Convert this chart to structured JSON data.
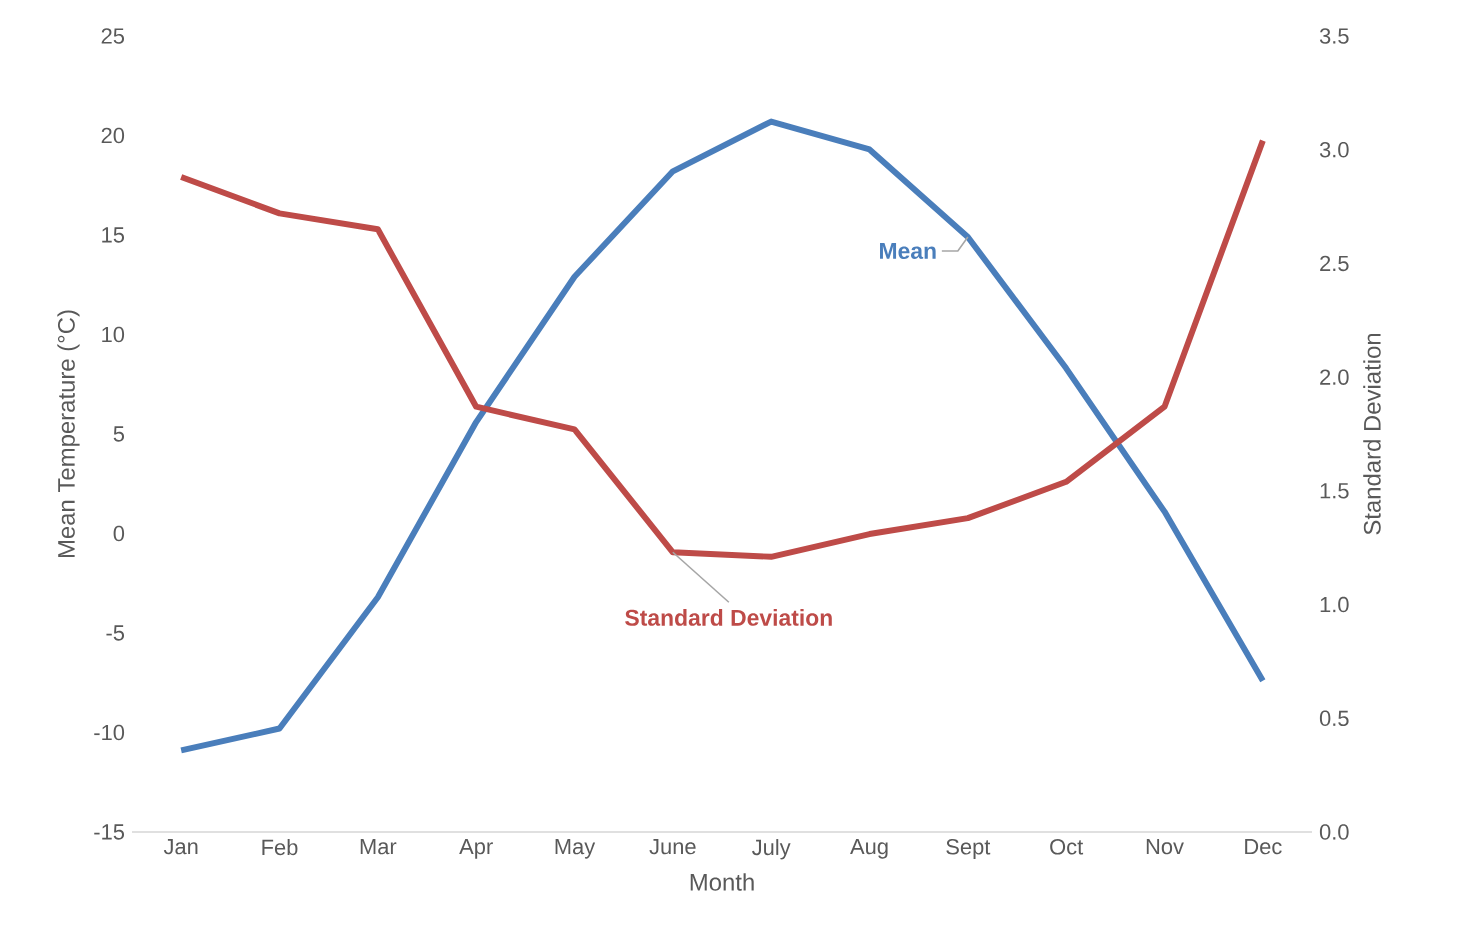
{
  "chart_data": {
    "type": "line",
    "xlabel": "Month",
    "ylabel": "Mean Temperature (°C)",
    "y2label": "Standard Deviation",
    "categories": [
      "Jan",
      "Feb",
      "Mar",
      "Apr",
      "May",
      "June",
      "July",
      "Aug",
      "Sept",
      "Oct",
      "Nov",
      "Dec"
    ],
    "series": [
      {
        "name": "Mean",
        "color": "#4a7ebb",
        "values": [
          -10.9,
          -9.8,
          -3.2,
          5.6,
          12.9,
          18.2,
          20.7,
          19.3,
          14.9,
          8.3,
          1.1,
          -7.4
        ]
      },
      {
        "name": "Standard Deviation",
        "color": "#be4b48",
        "axis": "y2",
        "values": [
          2.88,
          2.72,
          2.65,
          1.87,
          1.77,
          1.23,
          1.21,
          1.31,
          1.38,
          1.54,
          1.87,
          3.04
        ]
      }
    ],
    "ylim": [
      -15,
      25
    ],
    "yticks": [
      -15,
      -10,
      -5,
      0,
      5,
      10,
      15,
      20,
      25
    ],
    "y2lim": [
      0,
      3.5
    ],
    "y2ticks": [
      {
        "value": 0,
        "label": "0.0"
      },
      {
        "value": 0.5,
        "label": "0.5"
      },
      {
        "value": 1,
        "label": "1.0"
      },
      {
        "value": 1.5,
        "label": "1.5"
      },
      {
        "value": 2,
        "label": "2.0"
      },
      {
        "value": 2.5,
        "label": "2.5"
      },
      {
        "value": 3,
        "label": "3.0"
      },
      {
        "value": 3.5,
        "label": "3.5"
      }
    ],
    "grid": false,
    "legend": false,
    "marker": "none",
    "line_style": "solid"
  }
}
